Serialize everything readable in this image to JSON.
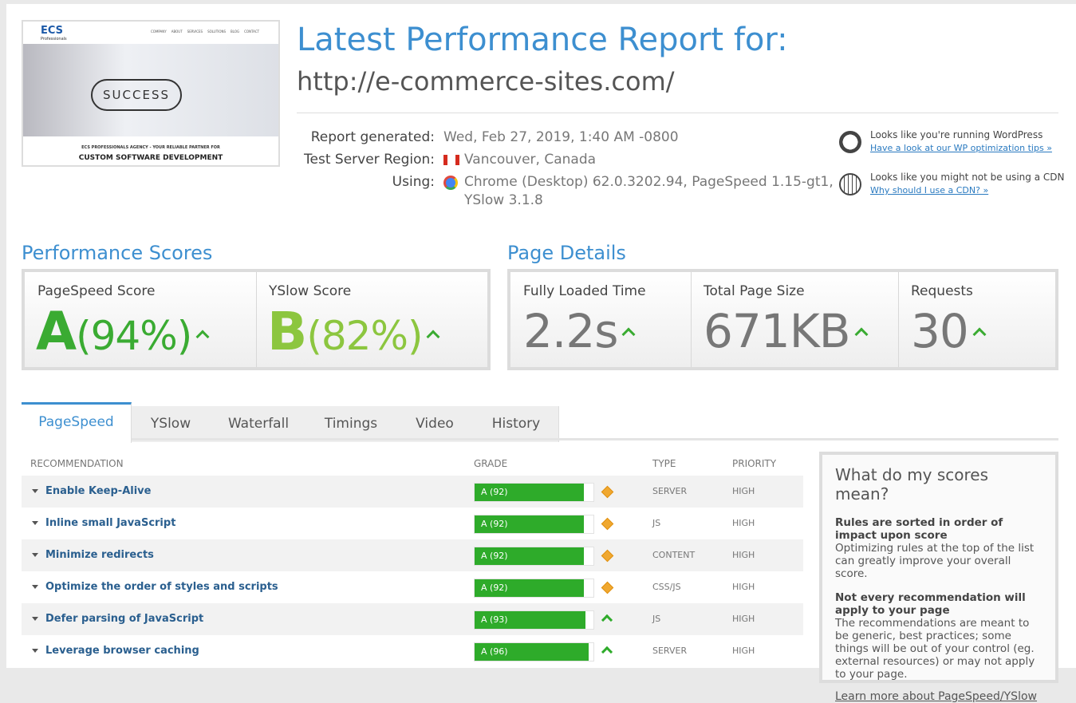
{
  "thumbnail": {
    "brand": "ECS",
    "brand_sub": "Professionals",
    "nav": [
      "COMPANY",
      "ABOUT",
      "SERVICES",
      "SOLUTIONS",
      "BLOG",
      "CONTACT"
    ],
    "hero": "SUCCESS",
    "tagline": "ECS PROFESSIONALS AGENCY - YOUR RELIABLE PARTNER FOR",
    "headline": "CUSTOM SOFTWARE DEVELOPMENT"
  },
  "header": {
    "title": "Latest Performance Report for:",
    "url": "http://e-commerce-sites.com/"
  },
  "report_info": [
    {
      "label": "Report generated:",
      "value": "Wed, Feb 27, 2019, 1:40 AM -0800",
      "icon": "none"
    },
    {
      "label": "Test Server Region:",
      "value": "Vancouver, Canada",
      "icon": "flag"
    },
    {
      "label": "Using:",
      "value": "Chrome (Desktop) 62.0.3202.94, PageSpeed 1.15-gt1,",
      "value2": "YSlow 3.1.8",
      "icon": "chrome"
    }
  ],
  "notices": [
    {
      "text": "Looks like you're running WordPress",
      "link": "Have a look at our WP optimization tips »",
      "icon": "wordpress"
    },
    {
      "text": "Looks like you might not be using a CDN",
      "link": "Why should I use a CDN? »",
      "icon": "globe"
    }
  ],
  "performance_scores": {
    "title": "Performance Scores",
    "items": [
      {
        "label": "PageSpeed Score",
        "grade": "A",
        "score": "(94%)",
        "color": "#3aab32"
      },
      {
        "label": "YSlow Score",
        "grade": "B",
        "score": "(82%)",
        "color": "#8cc63f"
      }
    ]
  },
  "page_details": {
    "title": "Page Details",
    "items": [
      {
        "label": "Fully Loaded Time",
        "value": "2.2s"
      },
      {
        "label": "Total Page Size",
        "value": "671KB"
      },
      {
        "label": "Requests",
        "value": "30"
      }
    ]
  },
  "tabs": [
    "PageSpeed",
    "YSlow",
    "Waterfall",
    "Timings",
    "Video",
    "History"
  ],
  "table": {
    "headers": [
      "RECOMMENDATION",
      "GRADE",
      "TYPE",
      "PRIORITY"
    ],
    "rows": [
      {
        "name": "Enable Keep-Alive",
        "grade": "A (92)",
        "score": 92,
        "icon": "diamond",
        "type": "SERVER",
        "priority": "HIGH"
      },
      {
        "name": "Inline small JavaScript",
        "grade": "A (92)",
        "score": 92,
        "icon": "diamond",
        "type": "JS",
        "priority": "HIGH"
      },
      {
        "name": "Minimize redirects",
        "grade": "A (92)",
        "score": 92,
        "icon": "diamond",
        "type": "CONTENT",
        "priority": "HIGH"
      },
      {
        "name": "Optimize the order of styles and scripts",
        "grade": "A (92)",
        "score": 92,
        "icon": "diamond",
        "type": "CSS/JS",
        "priority": "HIGH"
      },
      {
        "name": "Defer parsing of JavaScript",
        "grade": "A (93)",
        "score": 93,
        "icon": "up",
        "type": "JS",
        "priority": "HIGH"
      },
      {
        "name": "Leverage browser caching",
        "grade": "A (96)",
        "score": 96,
        "icon": "up",
        "type": "SERVER",
        "priority": "HIGH"
      }
    ]
  },
  "sidebar": {
    "title": "What do my scores mean?",
    "sections": [
      {
        "heading": "Rules are sorted in order of impact upon score",
        "text": "Optimizing rules at the top of the list can greatly improve your overall score."
      },
      {
        "heading": "Not every recommendation will apply to your page",
        "text": "The recommendations are meant to be generic, best practices; some things will be out of your control (eg. external resources) or may not apply to your page."
      }
    ],
    "link": "Learn more about PageSpeed/YSlow"
  }
}
